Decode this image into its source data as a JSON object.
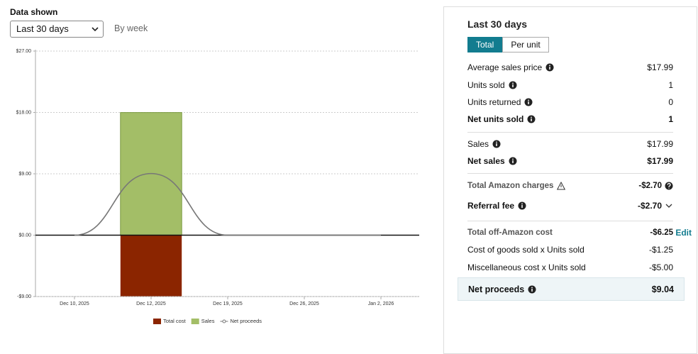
{
  "controls": {
    "label": "Data shown",
    "select": "Last 30 days",
    "period": "By week"
  },
  "chart_data": {
    "type": "bar",
    "categories": [
      "Dec 10, 2025",
      "Dec 12, 2025",
      "Dec 19, 2025",
      "Dec 26, 2025",
      "Jan 2, 2026"
    ],
    "series": [
      {
        "name": "Total cost",
        "type": "bar",
        "color": "#8b2500",
        "values": [
          0,
          -8.95,
          0,
          0,
          0
        ]
      },
      {
        "name": "Sales",
        "type": "bar",
        "color": "#a3be67",
        "values": [
          0,
          17.99,
          0,
          0,
          0
        ]
      },
      {
        "name": "Net proceeds",
        "type": "line",
        "color": "#777777",
        "values": [
          0,
          9.04,
          0,
          0,
          0
        ]
      }
    ],
    "ylim": [
      -9,
      27
    ],
    "yticks": [
      {
        "value": -9,
        "label": "-$9.00"
      },
      {
        "value": 0,
        "label": "$0.00"
      },
      {
        "value": 9,
        "label": "$9.00"
      },
      {
        "value": 18,
        "label": "$18.00"
      },
      {
        "value": 27,
        "label": "$27.00"
      }
    ],
    "grid": true,
    "legend": "bottom"
  },
  "panel": {
    "title": "Last 30 days",
    "tabs": [
      "Total",
      "Per unit"
    ],
    "active_tab": 0,
    "sections": [
      [
        {
          "label": "Average sales price",
          "value": "$17.99",
          "icon": "info"
        },
        {
          "label": "Units sold",
          "value": "1",
          "icon": "info"
        },
        {
          "label": "Units returned",
          "value": "0",
          "icon": "info"
        },
        {
          "label": "Net units sold",
          "value": "1",
          "icon": "info",
          "style": "bold"
        }
      ],
      [
        {
          "label": "Sales",
          "value": "$17.99",
          "icon": "info"
        },
        {
          "label": "Net sales",
          "value": "$17.99",
          "icon": "info",
          "style": "bold"
        }
      ],
      [
        {
          "label": "Total Amazon charges",
          "value": "-$2.70",
          "icon": "warning",
          "style": "header",
          "suffix": "help"
        },
        {
          "label": "Referral fee",
          "value": "-$2.70",
          "icon": "info",
          "style": "bold",
          "suffix": "chevron"
        }
      ],
      [
        {
          "label": "Total off-Amazon cost",
          "value": "-$6.25",
          "style": "header",
          "link": "Edit"
        },
        {
          "label": "Cost of goods sold x Units sold",
          "value": "-$1.25"
        },
        {
          "label": "Miscellaneous cost x Units sold",
          "value": "-$5.00"
        }
      ]
    ],
    "net": {
      "label": "Net proceeds",
      "value": "$9.04",
      "icon": "info"
    }
  }
}
